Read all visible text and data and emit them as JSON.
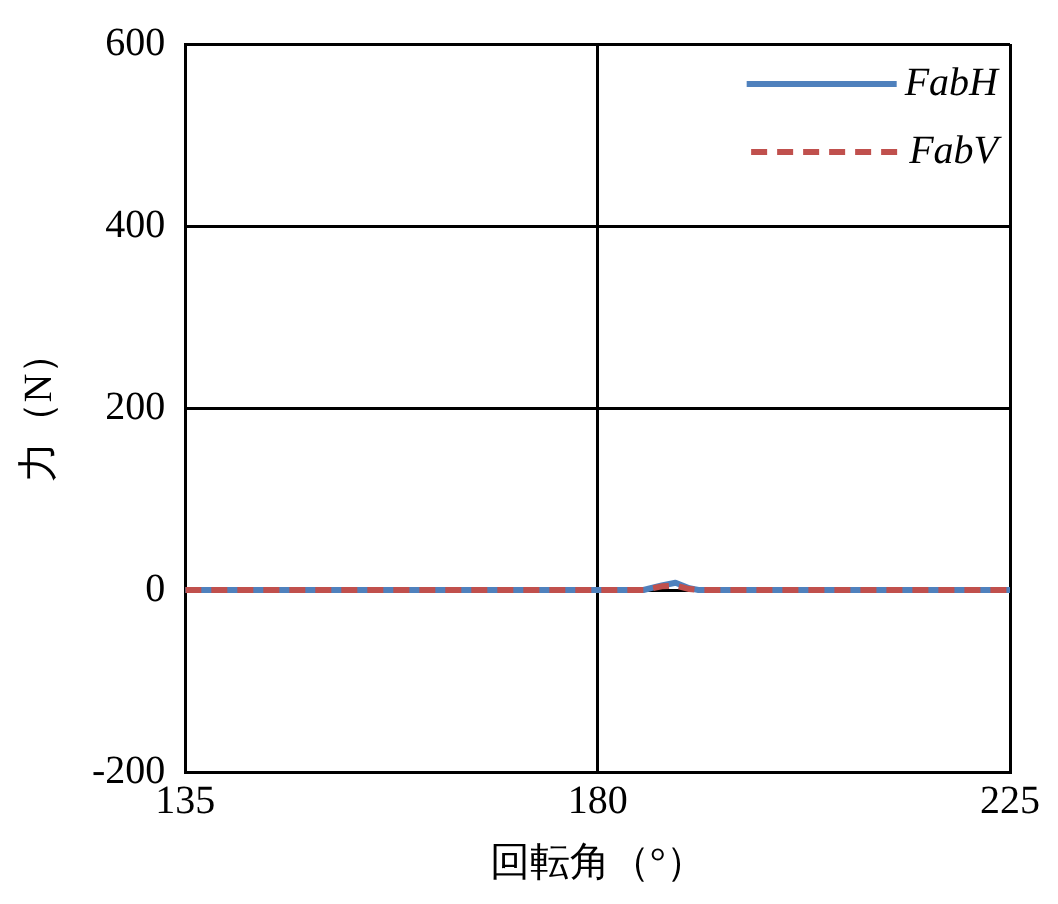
{
  "chart_data": {
    "type": "line",
    "xlabel": "回転角（°）",
    "ylabel": "力（N）",
    "xlim": [
      135,
      225
    ],
    "xticks": [
      135,
      180,
      225
    ],
    "ylim": [
      -200,
      600
    ],
    "yticks": [
      -200,
      0,
      200,
      400,
      600
    ],
    "grid": true,
    "legend": "top right",
    "marker": "none",
    "series": [
      {
        "name": "FabH",
        "color": "#4f81bd",
        "line_style": "solid",
        "x": [
          135,
          150,
          165,
          180,
          185,
          187,
          188.5,
          190,
          191,
          200,
          212,
          225
        ],
        "values": [
          0,
          0,
          0,
          0,
          0,
          5,
          8,
          2,
          0,
          0,
          0,
          0
        ]
      },
      {
        "name": "FabV",
        "color": "#c0504d",
        "line_style": "dashed",
        "x": [
          135,
          150,
          165,
          180,
          185,
          187,
          188.5,
          190,
          191,
          200,
          212,
          225
        ],
        "values": [
          0,
          0,
          0,
          0,
          0,
          4,
          5,
          1,
          0,
          0,
          0,
          0
        ]
      }
    ]
  }
}
